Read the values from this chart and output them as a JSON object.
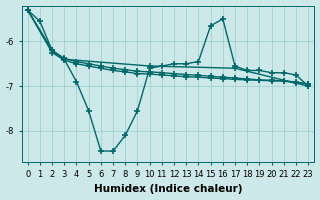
{
  "background_color": "#cce8e8",
  "grid_color": "#99cccc",
  "line_color": "#006868",
  "line_width": 1.0,
  "marker": "+",
  "marker_size": 4,
  "marker_lw": 1.2,
  "xlabel": "Humidex (Indice chaleur)",
  "xlabel_fontsize": 7.5,
  "tick_fontsize": 6,
  "ylim": [
    -8.7,
    -5.2
  ],
  "xlim": [
    -0.5,
    23.5
  ],
  "yticks": [
    -8,
    -7,
    -6
  ],
  "xticks": [
    0,
    1,
    2,
    3,
    4,
    5,
    6,
    7,
    8,
    9,
    10,
    11,
    12,
    13,
    14,
    15,
    16,
    17,
    18,
    19,
    20,
    21,
    22,
    23
  ],
  "series": [
    {
      "x": [
        0,
        1,
        2,
        3,
        4,
        5,
        6,
        7,
        8,
        9,
        10,
        11,
        12,
        13,
        14,
        15,
        16,
        17,
        18,
        19,
        20,
        21,
        22,
        23
      ],
      "y": [
        -5.3,
        -5.55,
        -6.2,
        -6.4,
        -6.9,
        -7.55,
        -8.45,
        -8.45,
        -8.1,
        -7.55,
        -6.6,
        -6.55,
        -6.5,
        -6.5,
        -6.45,
        -5.65,
        -5.5,
        -6.55,
        -6.65,
        -6.65,
        -6.7,
        -6.7,
        -6.75,
        -7.0
      ]
    },
    {
      "x": [
        0,
        2,
        3,
        10,
        17,
        23
      ],
      "y": [
        -5.3,
        -6.2,
        -6.4,
        -6.55,
        -6.6,
        -7.0
      ]
    },
    {
      "x": [
        0,
        2,
        3,
        4,
        5,
        6,
        7,
        8,
        9,
        10,
        11,
        12,
        13,
        14,
        15,
        16,
        17,
        18,
        19,
        20,
        21,
        22,
        23
      ],
      "y": [
        -5.3,
        -6.25,
        -6.42,
        -6.5,
        -6.55,
        -6.6,
        -6.65,
        -6.68,
        -6.72,
        -6.73,
        -6.75,
        -6.77,
        -6.79,
        -6.8,
        -6.82,
        -6.83,
        -6.85,
        -6.86,
        -6.87,
        -6.88,
        -6.89,
        -6.92,
        -6.95
      ]
    },
    {
      "x": [
        0,
        2,
        3,
        4,
        5,
        6,
        7,
        8,
        9,
        10,
        11,
        12,
        13,
        14,
        15,
        16,
        17,
        18,
        19,
        20,
        21,
        22,
        23
      ],
      "y": [
        -5.3,
        -6.2,
        -6.38,
        -6.45,
        -6.5,
        -6.55,
        -6.6,
        -6.63,
        -6.67,
        -6.68,
        -6.7,
        -6.72,
        -6.74,
        -6.76,
        -6.78,
        -6.8,
        -6.82,
        -6.84,
        -6.86,
        -6.87,
        -6.88,
        -6.91,
        -6.95
      ]
    }
  ]
}
